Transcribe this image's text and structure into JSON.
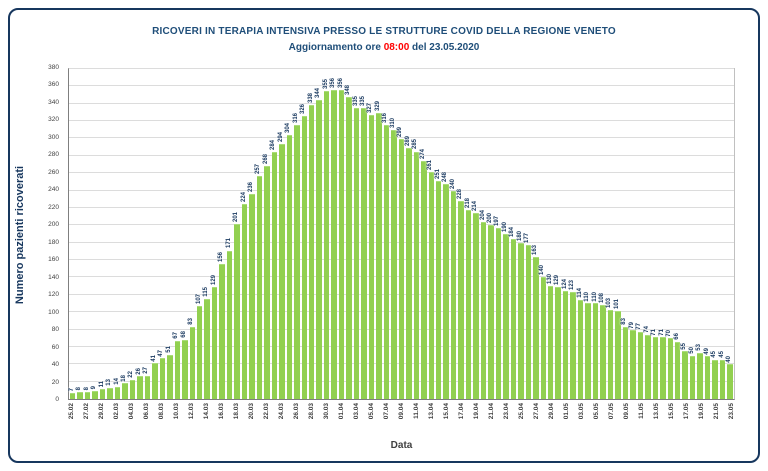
{
  "header": {
    "title": "RICOVERI IN TERAPIA INTENSIVA PRESSO LE STRUTTURE COVID DELLA REGIONE VENETO",
    "subtitle_prefix": "Aggiornamento ore ",
    "subtitle_time": "08:00",
    "subtitle_suffix": " del 23.05.2020"
  },
  "colors": {
    "frame_border": "#17375e",
    "title_text": "#1f4e79",
    "time_red": "#ff0000",
    "bar_fill": "#92d050",
    "value_label": "#17375e",
    "gridline": "#dcdcdc",
    "axis_text": "#404040"
  },
  "chart_data": {
    "type": "bar",
    "title": "RICOVERI IN TERAPIA INTENSIVA PRESSO LE STRUTTURE COVID DELLA REGIONE VENETO",
    "subtitle": "Aggiornamento ore 08:00 del 23.05.2020",
    "xlabel": "Data",
    "ylabel": "Numero pazienti ricoverati",
    "ylim": [
      0,
      380
    ],
    "ytick_step": 20,
    "x_tick_every": 2,
    "grid": true,
    "legend": "none",
    "categories": [
      "25.02",
      "26.02",
      "27.02",
      "28.02",
      "29.02",
      "01.03",
      "02.03",
      "03.03",
      "04.03",
      "05.03",
      "06.03",
      "07.03",
      "08.03",
      "09.03",
      "10.03",
      "11.03",
      "12.03",
      "13.03",
      "14.03",
      "15.03",
      "16.03",
      "17.03",
      "18.03",
      "19.03",
      "20.03",
      "21.03",
      "22.03",
      "23.03",
      "24.03",
      "25.03",
      "26.03",
      "27.03",
      "28.03",
      "29.03",
      "30.03",
      "31.03",
      "01.04",
      "02.04",
      "03.04",
      "04.04",
      "05.04",
      "06.04",
      "07.04",
      "08.04",
      "09.04",
      "10.04",
      "11.04",
      "12.04",
      "13.04",
      "14.04",
      "15.04",
      "16.04",
      "17.04",
      "18.04",
      "19.04",
      "20.04",
      "21.04",
      "22.04",
      "23.04",
      "24.04",
      "25.04",
      "26.04",
      "27.04",
      "28.04",
      "29.04",
      "30.04",
      "01.05",
      "02.05",
      "03.05",
      "04.05",
      "05.05",
      "06.05",
      "07.05",
      "08.05",
      "09.05",
      "10.05",
      "11.05",
      "12.05",
      "13.05",
      "14.05",
      "15.05",
      "16.05",
      "17.05",
      "18.05",
      "19.05",
      "20.05",
      "21.05",
      "22.05",
      "23.05"
    ],
    "values": [
      7,
      8,
      8,
      9,
      11,
      13,
      14,
      18,
      22,
      26,
      27,
      41,
      47,
      51,
      67,
      68,
      83,
      107,
      115,
      129,
      156,
      171,
      201,
      224,
      236,
      257,
      268,
      284,
      294,
      304,
      316,
      326,
      338,
      344,
      355,
      356,
      356,
      348,
      335,
      335,
      327,
      329,
      316,
      310,
      299,
      289,
      285,
      274,
      261,
      251,
      248,
      240,
      228,
      218,
      214,
      204,
      200,
      197,
      190,
      184,
      180,
      177,
      163,
      140,
      130,
      129,
      124,
      123,
      114,
      110,
      110,
      108,
      103,
      101,
      83,
      79,
      77,
      74,
      71,
      71,
      70,
      66,
      55,
      50,
      53,
      49,
      45,
      45,
      40
    ]
  }
}
